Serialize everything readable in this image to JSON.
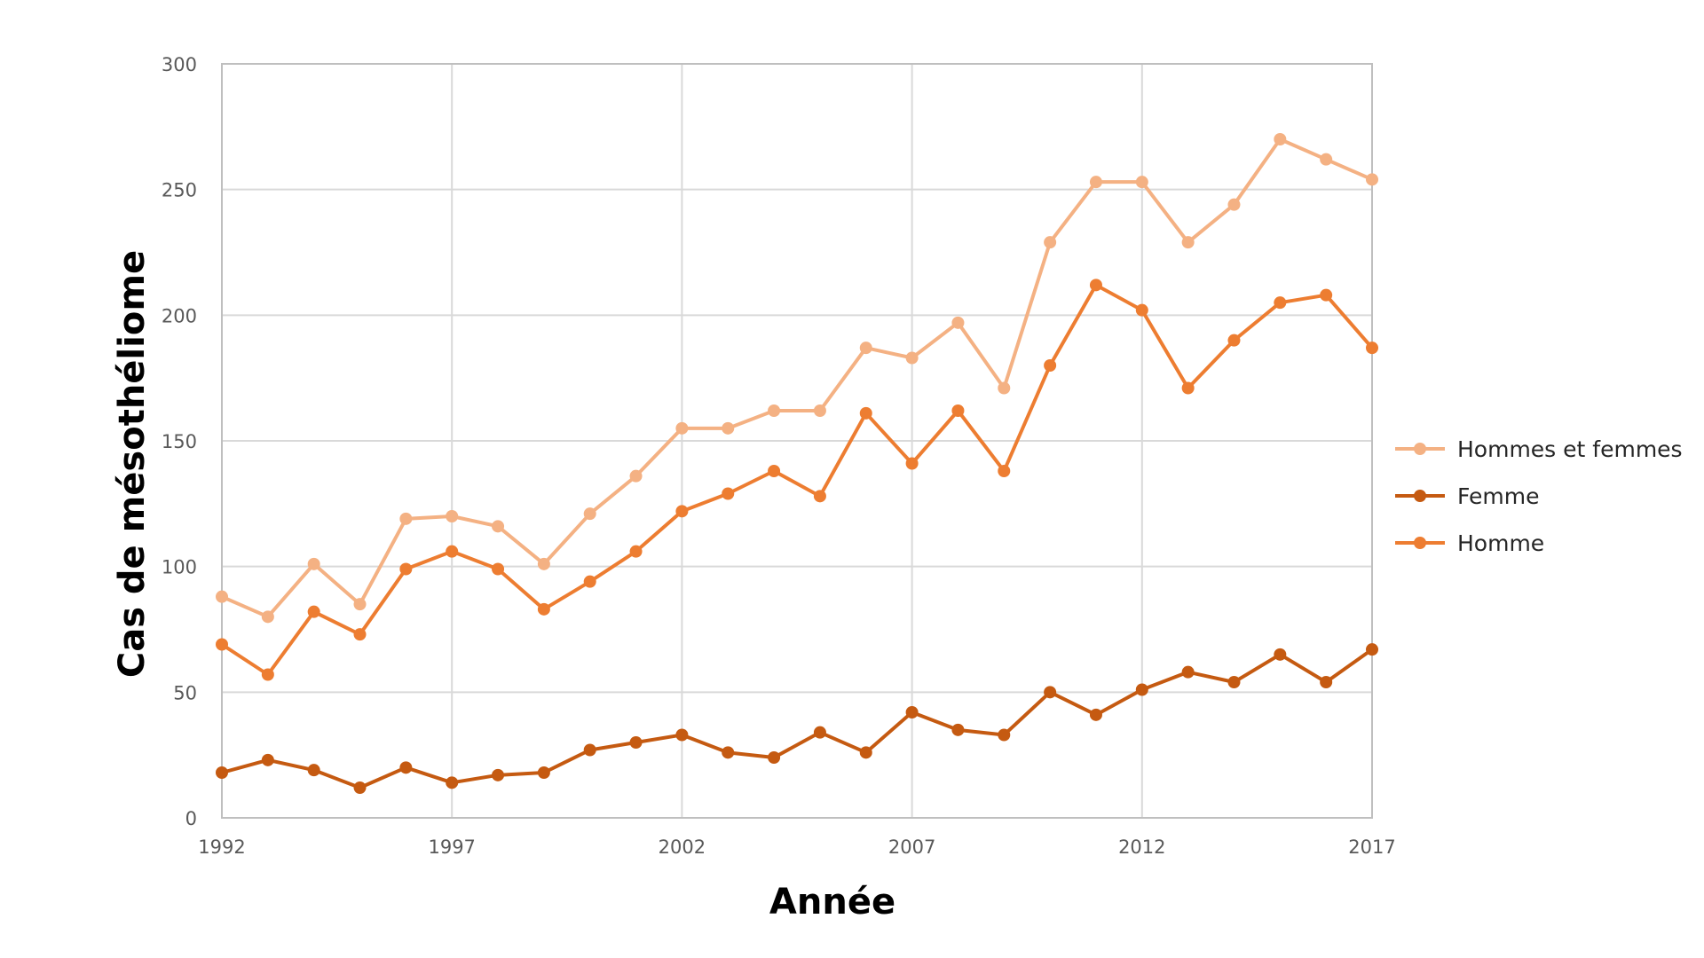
{
  "chart_data": {
    "type": "line",
    "title": "",
    "xlabel": "Année",
    "ylabel": "Cas de mésothéliome",
    "xlim": [
      1992,
      2017
    ],
    "ylim": [
      0,
      300
    ],
    "x_ticks": [
      "1992",
      "1997",
      "2002",
      "2007",
      "2012",
      "2017"
    ],
    "y_ticks": [
      "0",
      "50",
      "100",
      "150",
      "200",
      "250",
      "300"
    ],
    "grid": true,
    "legend_position": "right",
    "x": [
      1992,
      1993,
      1994,
      1995,
      1996,
      1997,
      1998,
      1999,
      2000,
      2001,
      2002,
      2003,
      2004,
      2005,
      2006,
      2007,
      2008,
      2009,
      2010,
      2011,
      2012,
      2013,
      2014,
      2015,
      2016,
      2017
    ],
    "series": [
      {
        "name": "Hommes et femmes",
        "color": "#f4b183",
        "values": [
          88,
          80,
          101,
          85,
          119,
          120,
          116,
          101,
          121,
          136,
          155,
          155,
          162,
          162,
          187,
          183,
          197,
          171,
          229,
          253,
          253,
          229,
          244,
          270,
          262,
          254
        ]
      },
      {
        "name": "Femme",
        "color": "#c55a11",
        "values": [
          18,
          23,
          19,
          12,
          20,
          14,
          17,
          18,
          27,
          30,
          33,
          26,
          24,
          34,
          26,
          42,
          35,
          33,
          50,
          41,
          51,
          58,
          54,
          65,
          54,
          67
        ]
      },
      {
        "name": "Homme",
        "color": "#ed7d31",
        "values": [
          69,
          57,
          82,
          73,
          99,
          106,
          99,
          83,
          94,
          106,
          122,
          129,
          138,
          128,
          161,
          141,
          162,
          138,
          180,
          212,
          202,
          171,
          190,
          205,
          208,
          187
        ]
      }
    ]
  }
}
